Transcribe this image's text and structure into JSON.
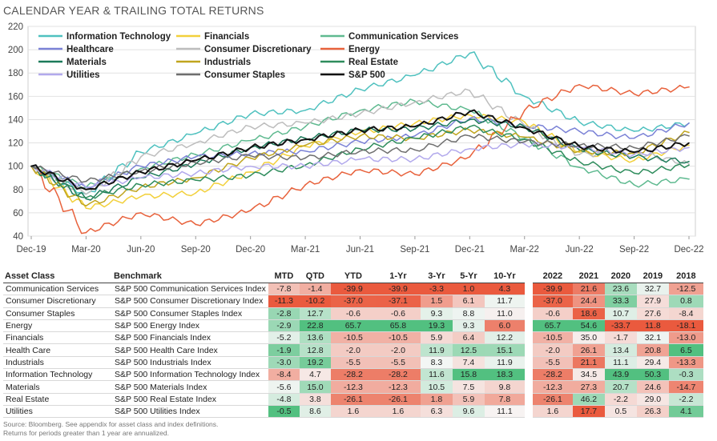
{
  "title": "CALENDAR YEAR & TRAILING TOTAL RETURNS",
  "chart_data": {
    "type": "line",
    "title": "",
    "xlabel": "",
    "ylabel": "",
    "ylim": [
      40,
      220
    ],
    "yticks": [
      40,
      60,
      80,
      100,
      120,
      140,
      160,
      180,
      200,
      220
    ],
    "xticks": [
      "Dec-19",
      "Mar-20",
      "Jun-20",
      "Sep-20",
      "Dec-20",
      "Mar-21",
      "Jun-21",
      "Sep-21",
      "Dec-21",
      "Mar-22",
      "Jun-22",
      "Sep-22",
      "Dec-22"
    ],
    "grid": true,
    "legend_position": "top-left",
    "x": [
      "Dec-19",
      "Mar-20",
      "Jun-20",
      "Sep-20",
      "Dec-20",
      "Mar-21",
      "Jun-21",
      "Sep-21",
      "Dec-21",
      "Mar-22",
      "Jun-22",
      "Sep-22",
      "Dec-22"
    ],
    "series": [
      {
        "name": "Information Technology",
        "color": "#4fc1bf",
        "values": [
          100,
          76,
          112,
          128,
          145,
          148,
          166,
          178,
          197,
          160,
          138,
          130,
          137
        ]
      },
      {
        "name": "Financials",
        "color": "#f2d03b",
        "values": [
          100,
          64,
          74,
          77,
          95,
          117,
          129,
          137,
          144,
          138,
          112,
          105,
          118
        ]
      },
      {
        "name": "Communication Services",
        "color": "#5fba90",
        "values": [
          100,
          82,
          98,
          110,
          122,
          134,
          148,
          156,
          148,
          124,
          99,
          84,
          89
        ]
      },
      {
        "name": "Healthcare",
        "color": "#7b82d6",
        "values": [
          100,
          82,
          100,
          108,
          111,
          113,
          121,
          126,
          141,
          135,
          130,
          124,
          137
        ]
      },
      {
        "name": "Consumer Discretionary",
        "color": "#bdbdbd",
        "values": [
          100,
          76,
          108,
          120,
          134,
          137,
          145,
          155,
          165,
          135,
          110,
          112,
          102
        ]
      },
      {
        "name": "Energy",
        "color": "#e8623c",
        "values": [
          100,
          43,
          60,
          50,
          62,
          84,
          97,
          93,
          108,
          148,
          170,
          162,
          168
        ]
      },
      {
        "name": "Materials",
        "color": "#1c7a5a",
        "values": [
          100,
          72,
          90,
          102,
          116,
          124,
          131,
          132,
          140,
          134,
          114,
          108,
          104
        ]
      },
      {
        "name": "Industrials",
        "color": "#c0a51e",
        "values": [
          100,
          66,
          82,
          90,
          107,
          118,
          126,
          124,
          131,
          125,
          113,
          111,
          129
        ]
      },
      {
        "name": "Real Estate",
        "color": "#2e8c5c",
        "values": [
          100,
          73,
          84,
          88,
          92,
          101,
          115,
          124,
          134,
          123,
          104,
          94,
          101
        ]
      },
      {
        "name": "Utilities",
        "color": "#b2a9ec",
        "values": [
          100,
          82,
          90,
          94,
          100,
          100,
          106,
          106,
          115,
          119,
          116,
          110,
          116
        ]
      },
      {
        "name": "Consumer Staples",
        "color": "#6e6e6e",
        "values": [
          100,
          87,
          96,
          103,
          109,
          107,
          113,
          114,
          126,
          121,
          118,
          116,
          126
        ]
      },
      {
        "name": "S&P 500",
        "color": "#111111",
        "values": [
          100,
          80,
          95,
          105,
          116,
          123,
          131,
          134,
          147,
          133,
          117,
          112,
          120
        ]
      }
    ]
  },
  "table": {
    "headers": {
      "asset_class": "Asset Class",
      "benchmark": "Benchmark",
      "cols": [
        "MTD",
        "QTD",
        "YTD",
        "1-Yr",
        "3-Yr",
        "5-Yr",
        "10-Yr"
      ],
      "years": [
        "2022",
        "2021",
        "2020",
        "2019",
        "2018"
      ]
    },
    "rows": [
      {
        "asset": "Communication Services",
        "bench": "S&P 500 Communication Services Index",
        "cols": [
          "-7.8",
          "-1.4",
          "-39.9",
          "-39.9",
          "-3.3",
          "1.0",
          "4.3"
        ],
        "years": [
          "-39.9",
          "21.6",
          "23.6",
          "32.7",
          "-12.5"
        ]
      },
      {
        "asset": "Consumer Discretionary",
        "bench": "S&P 500 Consumer Discretionary Index",
        "cols": [
          "-11.3",
          "-10.2",
          "-37.0",
          "-37.1",
          "1.5",
          "6.1",
          "11.7"
        ],
        "years": [
          "-37.0",
          "24.4",
          "33.3",
          "27.9",
          "0.8"
        ]
      },
      {
        "asset": "Consumer Staples",
        "bench": "S&P 500 Consumer Staples Index",
        "cols": [
          "-2.8",
          "12.7",
          "-0.6",
          "-0.6",
          "9.3",
          "8.8",
          "11.0"
        ],
        "years": [
          "-0.6",
          "18.6",
          "10.7",
          "27.6",
          "-8.4"
        ]
      },
      {
        "asset": "Energy",
        "bench": "S&P 500 Energy Index",
        "cols": [
          "-2.9",
          "22.8",
          "65.7",
          "65.8",
          "19.3",
          "9.3",
          "6.0"
        ],
        "years": [
          "65.7",
          "54.6",
          "-33.7",
          "11.8",
          "-18.1"
        ]
      },
      {
        "asset": "Financials",
        "bench": "S&P 500 Financials Index",
        "cols": [
          "-5.2",
          "13.6",
          "-10.5",
          "-10.5",
          "5.9",
          "6.4",
          "12.2"
        ],
        "years": [
          "-10.5",
          "35.0",
          "-1.7",
          "32.1",
          "-13.0"
        ]
      },
      {
        "asset": "Health Care",
        "bench": "S&P 500 Health Care Index",
        "cols": [
          "-1.9",
          "12.8",
          "-2.0",
          "-2.0",
          "11.9",
          "12.5",
          "15.1"
        ],
        "years": [
          "-2.0",
          "26.1",
          "13.4",
          "20.8",
          "6.5"
        ]
      },
      {
        "asset": "Industrials",
        "bench": "S&P 500 Industrials Index",
        "cols": [
          "-3.0",
          "19.2",
          "-5.5",
          "-5.5",
          "8.3",
          "7.4",
          "11.9"
        ],
        "years": [
          "-5.5",
          "21.1",
          "11.1",
          "29.4",
          "-13.3"
        ]
      },
      {
        "asset": "Information Technology",
        "bench": "S&P 500 Information Technology Index",
        "cols": [
          "-8.4",
          "4.7",
          "-28.2",
          "-28.2",
          "11.6",
          "15.8",
          "18.3"
        ],
        "years": [
          "-28.2",
          "34.5",
          "43.9",
          "50.3",
          "-0.3"
        ]
      },
      {
        "asset": "Materials",
        "bench": "S&P 500 Materials Index",
        "cols": [
          "-5.6",
          "15.0",
          "-12.3",
          "-12.3",
          "10.5",
          "7.5",
          "9.8"
        ],
        "years": [
          "-12.3",
          "27.3",
          "20.7",
          "24.6",
          "-14.7"
        ]
      },
      {
        "asset": "Real Estate",
        "bench": "S&P 500 Real Estate Index",
        "cols": [
          "-4.8",
          "3.8",
          "-26.1",
          "-26.1",
          "1.8",
          "5.9",
          "7.8"
        ],
        "years": [
          "-26.1",
          "46.2",
          "-2.2",
          "29.0",
          "-2.2"
        ]
      },
      {
        "asset": "Utilities",
        "bench": "S&P 500 Utilities Index",
        "cols": [
          "-0.5",
          "8.6",
          "1.6",
          "1.6",
          "6.3",
          "9.6",
          "11.1"
        ],
        "years": [
          "1.6",
          "17.7",
          "0.5",
          "26.3",
          "4.1"
        ]
      }
    ]
  },
  "source_lines": [
    "Source: Bloomberg. See appendix for asset class and index definitions.",
    "Returns for periods greater than 1 year are annualized."
  ]
}
